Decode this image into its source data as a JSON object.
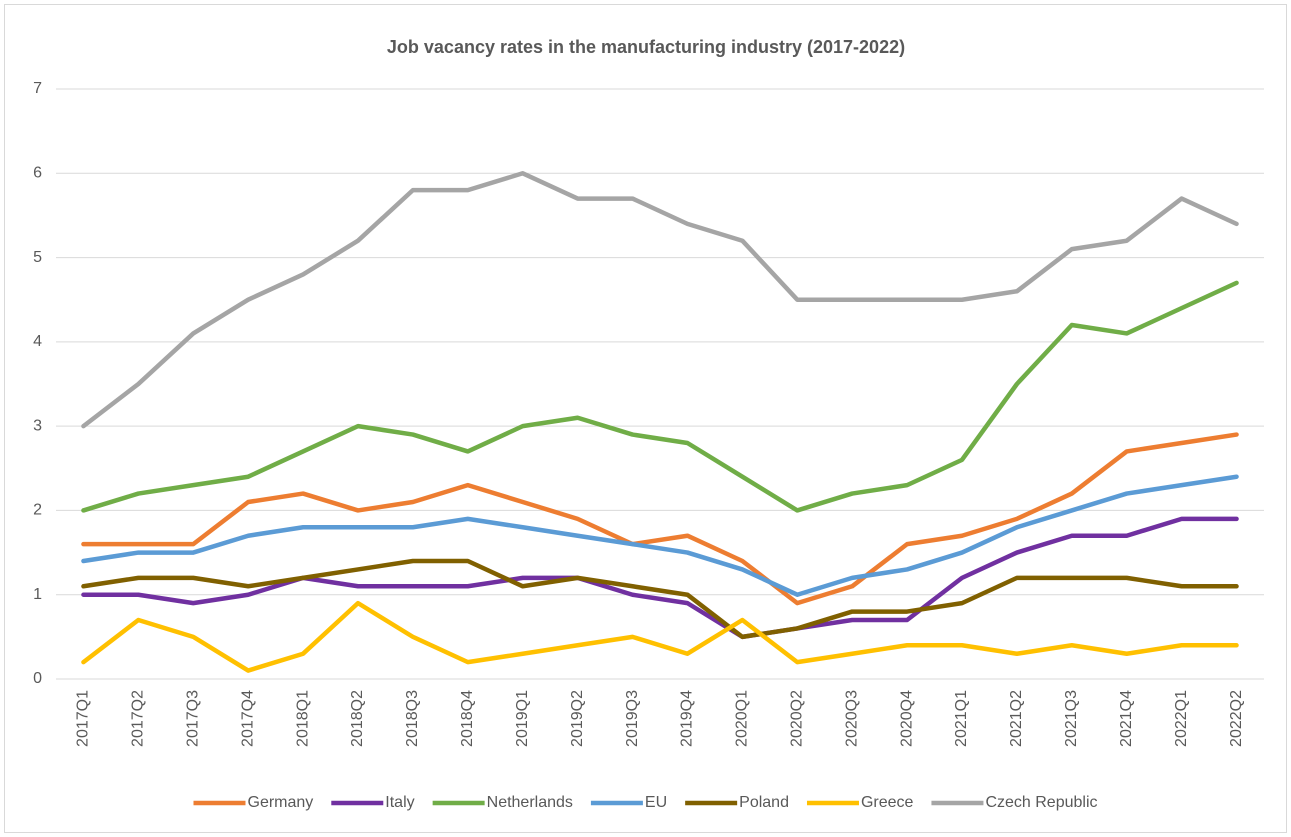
{
  "chart_data": {
    "type": "line",
    "title": "Job vacancy rates in the manufacturing industry (2017-2022)",
    "categories": [
      "2017Q1",
      "2017Q2",
      "2017Q3",
      "2017Q4",
      "2018Q1",
      "2018Q2",
      "2018Q3",
      "2018Q4",
      "2019Q1",
      "2019Q2",
      "2019Q3",
      "2019Q4",
      "2020Q1",
      "2020Q2",
      "2020Q3",
      "2020Q4",
      "2021Q1",
      "2021Q2",
      "2021Q3",
      "2021Q4",
      "2022Q1",
      "2022Q2"
    ],
    "series": [
      {
        "name": "Germany",
        "color": "#ed7d31",
        "values": [
          1.6,
          1.6,
          1.6,
          2.1,
          2.2,
          2.0,
          2.1,
          2.3,
          2.1,
          1.9,
          1.6,
          1.7,
          1.4,
          0.9,
          1.1,
          1.6,
          1.7,
          1.9,
          2.2,
          2.7,
          2.8,
          2.9
        ]
      },
      {
        "name": "Italy",
        "color": "#7030a0",
        "values": [
          1.0,
          1.0,
          0.9,
          1.0,
          1.2,
          1.1,
          1.1,
          1.1,
          1.2,
          1.2,
          1.0,
          0.9,
          0.5,
          0.6,
          0.7,
          0.7,
          1.2,
          1.5,
          1.7,
          1.7,
          1.9,
          1.9
        ]
      },
      {
        "name": "Netherlands",
        "color": "#70ad47",
        "values": [
          2.0,
          2.2,
          2.3,
          2.4,
          2.7,
          3.0,
          2.9,
          2.7,
          3.0,
          3.1,
          2.9,
          2.8,
          2.4,
          2.0,
          2.2,
          2.3,
          2.6,
          3.5,
          4.2,
          4.1,
          4.4,
          4.7
        ]
      },
      {
        "name": "EU",
        "color": "#5b9bd5",
        "values": [
          1.4,
          1.5,
          1.5,
          1.7,
          1.8,
          1.8,
          1.8,
          1.9,
          1.8,
          1.7,
          1.6,
          1.5,
          1.3,
          1.0,
          1.2,
          1.3,
          1.5,
          1.8,
          2.0,
          2.2,
          2.3,
          2.4
        ]
      },
      {
        "name": "Poland",
        "color": "#806000",
        "values": [
          1.1,
          1.2,
          1.2,
          1.1,
          1.2,
          1.3,
          1.4,
          1.4,
          1.1,
          1.2,
          1.1,
          1.0,
          0.5,
          0.6,
          0.8,
          0.8,
          0.9,
          1.2,
          1.2,
          1.2,
          1.1,
          1.1
        ]
      },
      {
        "name": "Greece",
        "color": "#ffc000",
        "values": [
          0.2,
          0.7,
          0.5,
          0.1,
          0.3,
          0.9,
          0.5,
          0.2,
          0.3,
          0.4,
          0.5,
          0.3,
          0.7,
          0.2,
          0.3,
          0.4,
          0.4,
          0.3,
          0.4,
          0.3,
          0.4,
          0.4
        ]
      },
      {
        "name": "Czech Republic",
        "color": "#a5a5a5",
        "values": [
          3.0,
          3.5,
          4.1,
          4.5,
          4.8,
          5.2,
          5.8,
          5.8,
          6.0,
          5.7,
          5.7,
          5.4,
          5.2,
          4.5,
          4.5,
          4.5,
          4.5,
          4.6,
          5.1,
          5.2,
          5.7,
          5.4
        ]
      }
    ],
    "ylim": [
      0,
      7
    ],
    "yticks": [
      0,
      1,
      2,
      3,
      4,
      5,
      6,
      7
    ],
    "grid": true,
    "legend": "bottom"
  }
}
